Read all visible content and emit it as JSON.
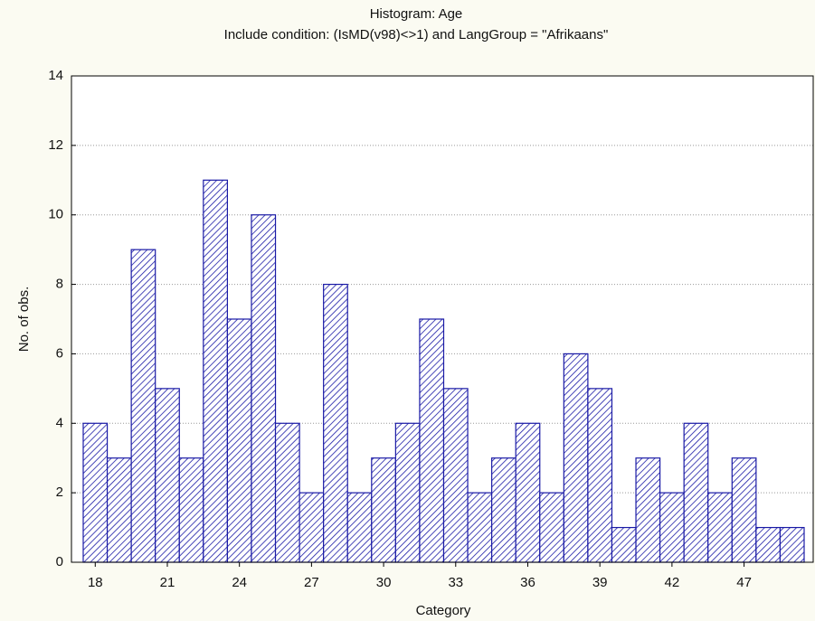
{
  "chart_data": {
    "type": "bar",
    "title": "Histogram: Age",
    "subtitle": "Include condition: (IsMD(v98)<>1)  and LangGroup = \"Afrikaans\"",
    "x_label": "Category",
    "y_label": "No. of obs.",
    "categories": [
      "18",
      null,
      null,
      "21",
      null,
      null,
      "24",
      null,
      null,
      "27",
      null,
      null,
      "30",
      null,
      null,
      "33",
      null,
      null,
      "36",
      null,
      null,
      "39",
      null,
      null,
      "42",
      null,
      null,
      "47",
      null,
      null
    ],
    "values": [
      4,
      3,
      9,
      5,
      3,
      11,
      7,
      10,
      4,
      2,
      8,
      2,
      3,
      4,
      7,
      5,
      2,
      3,
      4,
      2,
      6,
      5,
      1,
      3,
      2,
      4,
      2,
      3,
      1,
      1
    ],
    "color": "#1a1aa6",
    "ylim": [
      0,
      14
    ],
    "yticks": [
      0,
      2,
      4,
      6,
      8,
      10,
      12,
      14
    ],
    "grid": true
  }
}
